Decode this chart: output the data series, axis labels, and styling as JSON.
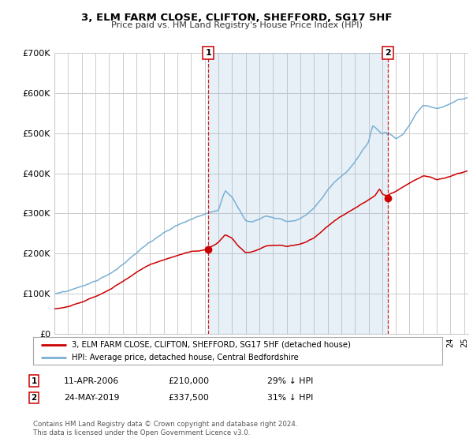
{
  "title": "3, ELM FARM CLOSE, CLIFTON, SHEFFORD, SG17 5HF",
  "subtitle": "Price paid vs. HM Land Registry's House Price Index (HPI)",
  "ylim": [
    0,
    700000
  ],
  "yticks": [
    0,
    100000,
    200000,
    300000,
    400000,
    500000,
    600000,
    700000
  ],
  "ytick_labels": [
    "£0",
    "£100K",
    "£200K",
    "£300K",
    "£400K",
    "£500K",
    "£600K",
    "£700K"
  ],
  "legend_label_red": "3, ELM FARM CLOSE, CLIFTON, SHEFFORD, SG17 5HF (detached house)",
  "legend_label_blue": "HPI: Average price, detached house, Central Bedfordshire",
  "sale1_date": "11-APR-2006",
  "sale1_price": "£210,000",
  "sale1_hpi": "29% ↓ HPI",
  "sale1_x": 2006.28,
  "sale1_y": 210000,
  "sale2_date": "24-MAY-2019",
  "sale2_price": "£337,500",
  "sale2_hpi": "31% ↓ HPI",
  "sale2_x": 2019.39,
  "sale2_y": 337500,
  "footer": "Contains HM Land Registry data © Crown copyright and database right 2024.\nThis data is licensed under the Open Government Licence v3.0.",
  "line_color_red": "#cc0000",
  "line_color_blue": "#7ab0d4",
  "shade_color": "#ddeeff",
  "vline_color": "#cc0000",
  "bg_color": "#ffffff",
  "grid_color": "#cccccc",
  "xlim_min": 1995.0,
  "xlim_max": 2025.3
}
